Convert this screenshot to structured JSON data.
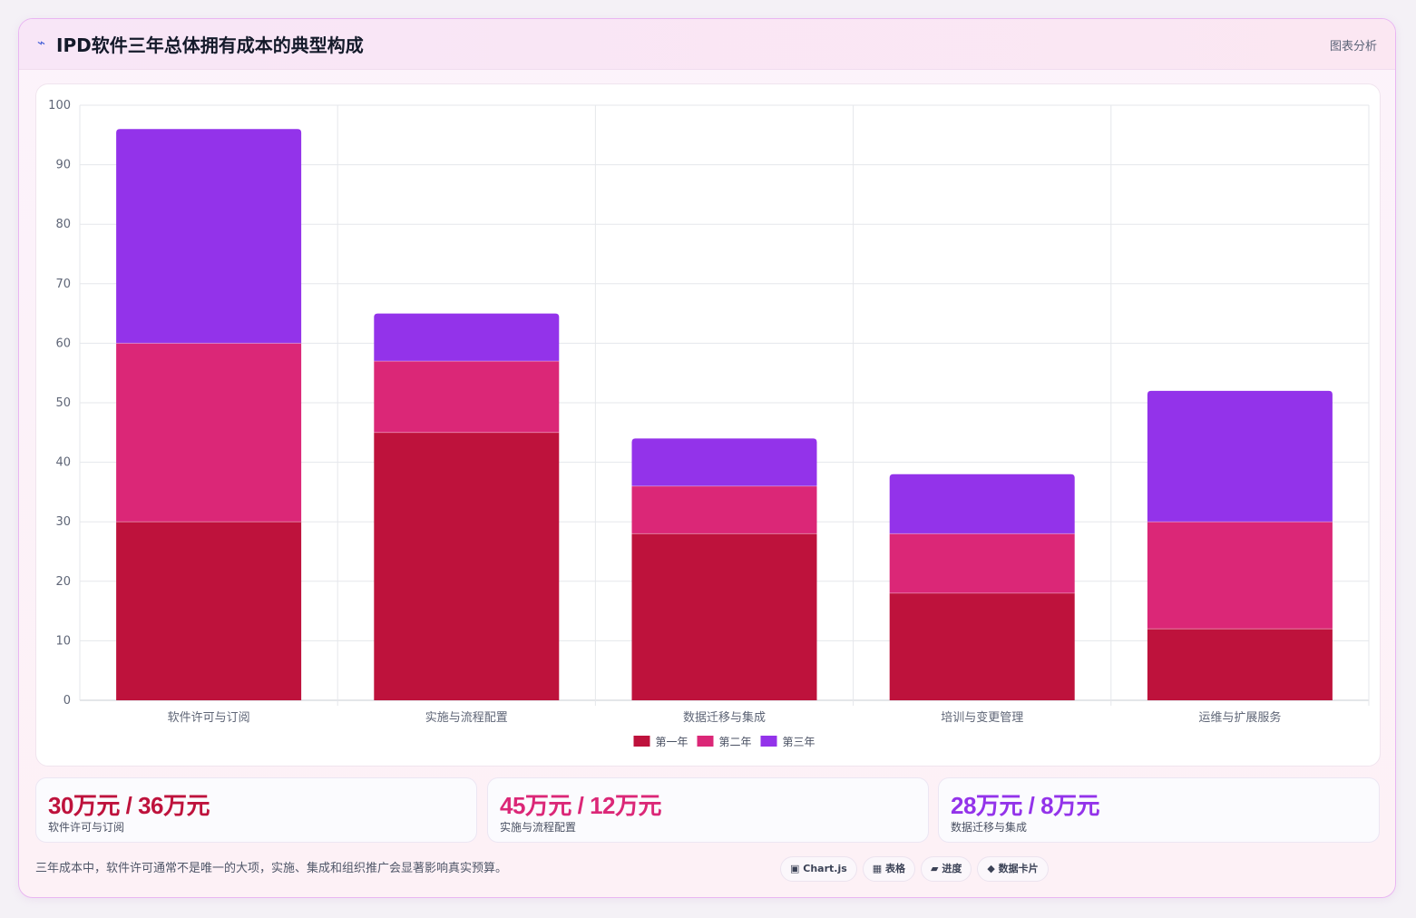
{
  "header": {
    "icon": "bolt-icon",
    "title": "IPD软件三年总体拥有成本的典型构成",
    "link_label": "图表分析"
  },
  "chart_data": {
    "type": "bar",
    "stacked": true,
    "categories": [
      "软件许可与订阅",
      "实施与流程配置",
      "数据迁移与集成",
      "培训与变更管理",
      "运维与扩展服务"
    ],
    "series": [
      {
        "name": "第一年",
        "values": [
          30,
          45,
          28,
          18,
          12
        ],
        "color": "#be123c"
      },
      {
        "name": "第二年",
        "values": [
          30,
          12,
          8,
          10,
          18
        ],
        "color": "#db2777"
      },
      {
        "name": "第三年",
        "values": [
          36,
          8,
          8,
          10,
          22
        ],
        "color": "#9333ea"
      }
    ],
    "yticks": [
      0,
      10,
      20,
      30,
      40,
      50,
      60,
      70,
      80,
      90,
      100
    ],
    "ylim": [
      0,
      100
    ],
    "grid": true,
    "legend": "bottom"
  },
  "stats": [
    {
      "value": "30万元 / 36万元",
      "label": "软件许可与订阅",
      "color": "#be123c"
    },
    {
      "value": "45万元 / 12万元",
      "label": "实施与流程配置",
      "color": "#db2777"
    },
    {
      "value": "28万元 / 8万元",
      "label": "数据迁移与集成",
      "color": "#9333ea"
    }
  ],
  "note": "三年成本中，软件许可通常不是唯一的大项，实施、集成和组织推广会显著影响真实预算。",
  "tags": [
    {
      "icon": "chart-icon",
      "glyph": "▣",
      "label": "Chart.js"
    },
    {
      "icon": "table-icon",
      "glyph": "▦",
      "label": "表格"
    },
    {
      "icon": "progress-icon",
      "glyph": "▰",
      "label": "进度"
    },
    {
      "icon": "card-icon",
      "glyph": "◆",
      "label": "数据卡片"
    }
  ]
}
